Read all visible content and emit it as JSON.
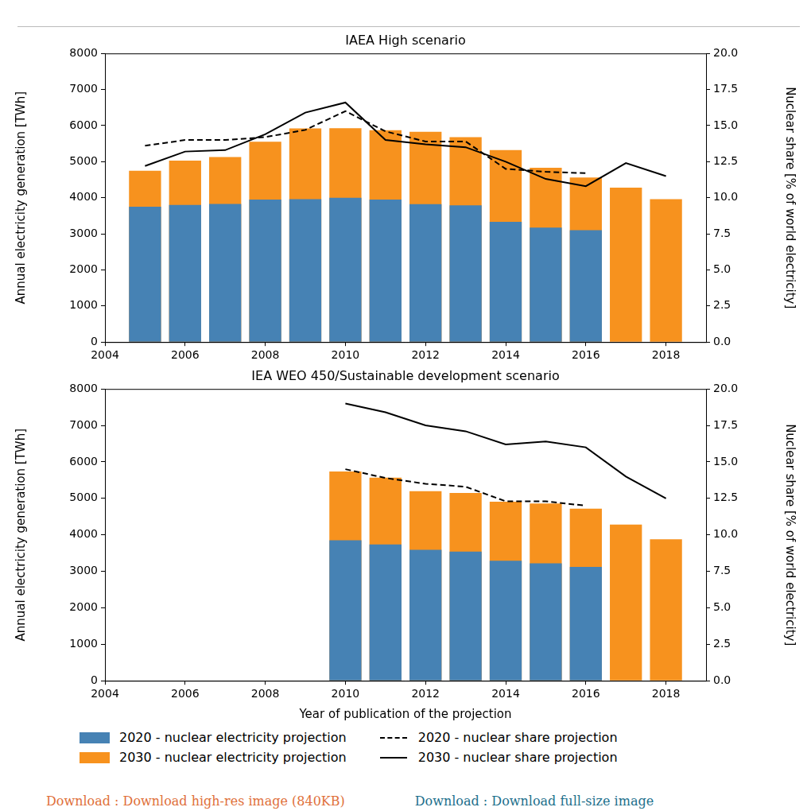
{
  "chart_data": [
    {
      "type": "bar",
      "title": "IAEA High scenario",
      "x": [
        2005,
        2006,
        2007,
        2008,
        2009,
        2010,
        2011,
        2012,
        2013,
        2014,
        2015,
        2016,
        2017,
        2018
      ],
      "xlim": [
        2004,
        2019
      ],
      "xticks": [
        2004,
        2006,
        2008,
        2010,
        2012,
        2014,
        2016,
        2018
      ],
      "y_label": "Annual electricity generation [TWh]",
      "ylim": [
        0,
        8000
      ],
      "yticks": [
        0,
        1000,
        2000,
        3000,
        4000,
        5000,
        6000,
        7000,
        8000
      ],
      "y2_label": "Nuclear share [% of world electricity]",
      "y2lim": [
        0,
        20
      ],
      "y2ticks": [
        {
          "value": 0,
          "label": "0.0"
        },
        2.5,
        {
          "value": 5,
          "label": "5.0"
        },
        7.5,
        {
          "value": 10,
          "label": "10.0"
        },
        12.5,
        {
          "value": 15,
          "label": "15.0"
        },
        17.5,
        {
          "value": 20,
          "label": "20.0"
        }
      ],
      "grid": false,
      "stacked": false,
      "series": [
        {
          "name": "2020 - nuclear electricity projection",
          "type": "bar",
          "color": "#4682b4",
          "values": [
            3750,
            3800,
            3830,
            3950,
            3960,
            4000,
            3950,
            3820,
            3790,
            3330,
            3170,
            3100,
            null,
            null
          ]
        },
        {
          "name": "2030 - nuclear electricity projection",
          "type": "bar",
          "color": "#f7921e",
          "values": [
            4750,
            5030,
            5130,
            5550,
            5920,
            5930,
            5870,
            5830,
            5680,
            5320,
            4830,
            4560,
            4280,
            3960
          ]
        },
        {
          "name": "2020 - nuclear share projection",
          "type": "line",
          "axis": "y2",
          "color": "#000000",
          "line_style": "dashed",
          "values": [
            13.6,
            14.0,
            14.0,
            14.2,
            14.7,
            16.0,
            14.6,
            13.9,
            13.9,
            12.0,
            11.8,
            11.7,
            null,
            null
          ]
        },
        {
          "name": "2030 - nuclear share projection",
          "type": "line",
          "axis": "y2",
          "color": "#000000",
          "line_style": "solid",
          "values": [
            12.2,
            13.2,
            13.3,
            14.4,
            15.9,
            16.6,
            14.0,
            13.7,
            13.5,
            12.5,
            11.3,
            10.8,
            12.4,
            11.5
          ]
        }
      ]
    },
    {
      "type": "bar",
      "title": "IEA WEO 450/Sustainable development scenario",
      "x": [
        2010,
        2011,
        2012,
        2013,
        2014,
        2015,
        2016,
        2017,
        2018
      ],
      "xlim": [
        2004,
        2019
      ],
      "xticks": [
        2004,
        2006,
        2008,
        2010,
        2012,
        2014,
        2016,
        2018
      ],
      "x_label": "Year of publication of the projection",
      "y_label": "Annual electricity generation [TWh]",
      "ylim": [
        0,
        8000
      ],
      "yticks": [
        0,
        1000,
        2000,
        3000,
        4000,
        5000,
        6000,
        7000,
        8000
      ],
      "y2_label": "Nuclear share [% of world electricity]",
      "y2lim": [
        0,
        20
      ],
      "y2ticks": [
        {
          "value": 0,
          "label": "0.0"
        },
        2.5,
        {
          "value": 5,
          "label": "5.0"
        },
        7.5,
        {
          "value": 10,
          "label": "10.0"
        },
        12.5,
        {
          "value": 15,
          "label": "15.0"
        },
        17.5,
        {
          "value": 20,
          "label": "20.0"
        }
      ],
      "grid": false,
      "stacked": false,
      "legend": "bottom",
      "series": [
        {
          "name": "2020 - nuclear electricity projection",
          "type": "bar",
          "color": "#4682b4",
          "values": [
            3850,
            3740,
            3590,
            3540,
            3290,
            3220,
            3120,
            null,
            null
          ]
        },
        {
          "name": "2030 - nuclear electricity projection",
          "type": "bar",
          "color": "#f7921e",
          "values": [
            5740,
            5570,
            5200,
            5150,
            4910,
            4860,
            4720,
            4280,
            3880
          ]
        },
        {
          "name": "2020 - nuclear share projection",
          "type": "line",
          "axis": "y2",
          "color": "#000000",
          "line_style": "dashed",
          "values": [
            14.5,
            13.9,
            13.5,
            13.3,
            12.3,
            12.3,
            12.0,
            null,
            null
          ]
        },
        {
          "name": "2030 - nuclear share projection",
          "type": "line",
          "axis": "y2",
          "color": "#000000",
          "line_style": "solid",
          "values": [
            19.0,
            18.4,
            17.5,
            17.1,
            16.2,
            16.4,
            16.0,
            14.0,
            12.5
          ]
        }
      ]
    }
  ],
  "footer_links": [
    "Download : Download high-res image (840KB)",
    "Download : Download full-size image"
  ]
}
